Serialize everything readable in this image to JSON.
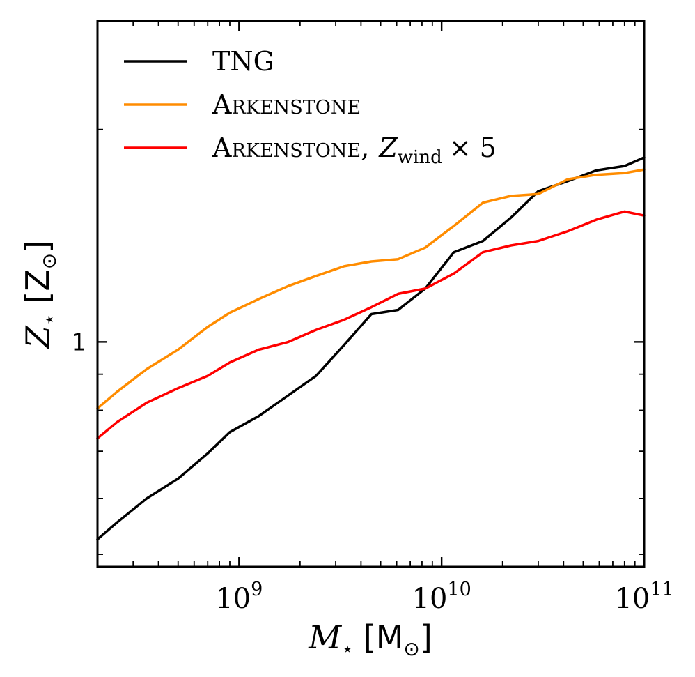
{
  "chart_data": {
    "type": "line",
    "xscale": "log",
    "yscale": "log",
    "xlim": [
      200000000,
      100000000000
    ],
    "ylim": [
      0.48,
      2.85
    ],
    "xlabel": {
      "symbol": "M",
      "sub": "⋆",
      "unit": "[M",
      "unit_sub": "⊙",
      "unit_close": "]"
    },
    "ylabel": {
      "symbol": "Z",
      "sub": "⋆",
      "unit": "[Z",
      "unit_sub": "⊙",
      "unit_close": "]"
    },
    "x_ticks": [
      {
        "value": 1000000000,
        "base": "10",
        "exp": "9"
      },
      {
        "value": 10000000000,
        "base": "10",
        "exp": "10"
      },
      {
        "value": 100000000000,
        "base": "10",
        "exp": "11"
      }
    ],
    "y_ticks": [
      {
        "value": 1,
        "label": "1"
      }
    ],
    "legend_position": "top-left",
    "series": [
      {
        "name": "TNG",
        "color": "#000000",
        "x": [
          200000000,
          250000000,
          350000000,
          500000000,
          700000000,
          900000000,
          1250000000,
          1750000000,
          2400000000,
          3300000000,
          4500000000,
          6100000000,
          8300000000,
          11500000000,
          16000000000,
          22000000000,
          30000000000,
          42000000000,
          58000000000,
          80000000000,
          100000000000
        ],
        "y": [
          0.525,
          0.555,
          0.6,
          0.64,
          0.695,
          0.745,
          0.785,
          0.84,
          0.895,
          0.99,
          1.095,
          1.11,
          1.19,
          1.34,
          1.39,
          1.5,
          1.635,
          1.69,
          1.75,
          1.775,
          1.825
        ]
      },
      {
        "name": "Arkenstone",
        "color": "#ff8c00",
        "x": [
          200000000,
          250000000,
          350000000,
          500000000,
          700000000,
          900000000,
          1250000000,
          1750000000,
          2400000000,
          3300000000,
          4500000000,
          6100000000,
          8300000000,
          11500000000,
          16000000000,
          22000000000,
          30000000000,
          42000000000,
          58000000000,
          80000000000,
          100000000000
        ],
        "y": [
          0.805,
          0.85,
          0.915,
          0.975,
          1.05,
          1.1,
          1.15,
          1.2,
          1.24,
          1.28,
          1.3,
          1.31,
          1.36,
          1.46,
          1.575,
          1.61,
          1.62,
          1.7,
          1.725,
          1.735,
          1.755
        ]
      },
      {
        "name": "Arkenstone, Z_wind × 5",
        "color": "#ff0000",
        "x": [
          200000000,
          250000000,
          350000000,
          500000000,
          700000000,
          900000000,
          1250000000,
          1750000000,
          2400000000,
          3300000000,
          4500000000,
          6100000000,
          8300000000,
          11500000000,
          16000000000,
          22000000000,
          30000000000,
          42000000000,
          58000000000,
          80000000000,
          100000000000
        ],
        "y": [
          0.73,
          0.77,
          0.82,
          0.86,
          0.895,
          0.935,
          0.975,
          1.0,
          1.04,
          1.075,
          1.12,
          1.17,
          1.19,
          1.25,
          1.34,
          1.37,
          1.39,
          1.435,
          1.49,
          1.53,
          1.51
        ]
      }
    ],
    "legend": [
      {
        "label": "TNG",
        "style": "sans"
      },
      {
        "label": "Arkenstone",
        "style": "smallcaps"
      },
      {
        "label": "Arkenstone,",
        "style": "smallcaps",
        "math": {
          "symbol": "Z",
          "sub": "wind",
          "suffix": "× 5"
        }
      }
    ]
  }
}
